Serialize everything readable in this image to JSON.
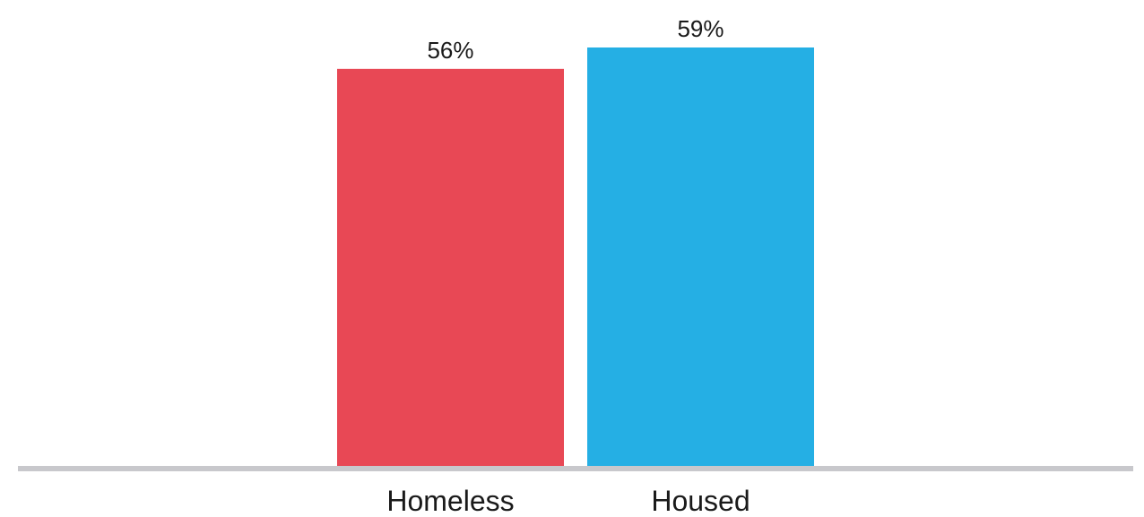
{
  "chart_data": {
    "type": "bar",
    "categories": [
      "Homeless",
      "Housed"
    ],
    "values": [
      56,
      59
    ],
    "value_suffix": "%",
    "colors": [
      "#e84855",
      "#25afe4"
    ],
    "axis_color": "#c8c8cc",
    "ylim": [
      0,
      60
    ],
    "grid": false,
    "legend": "none"
  }
}
